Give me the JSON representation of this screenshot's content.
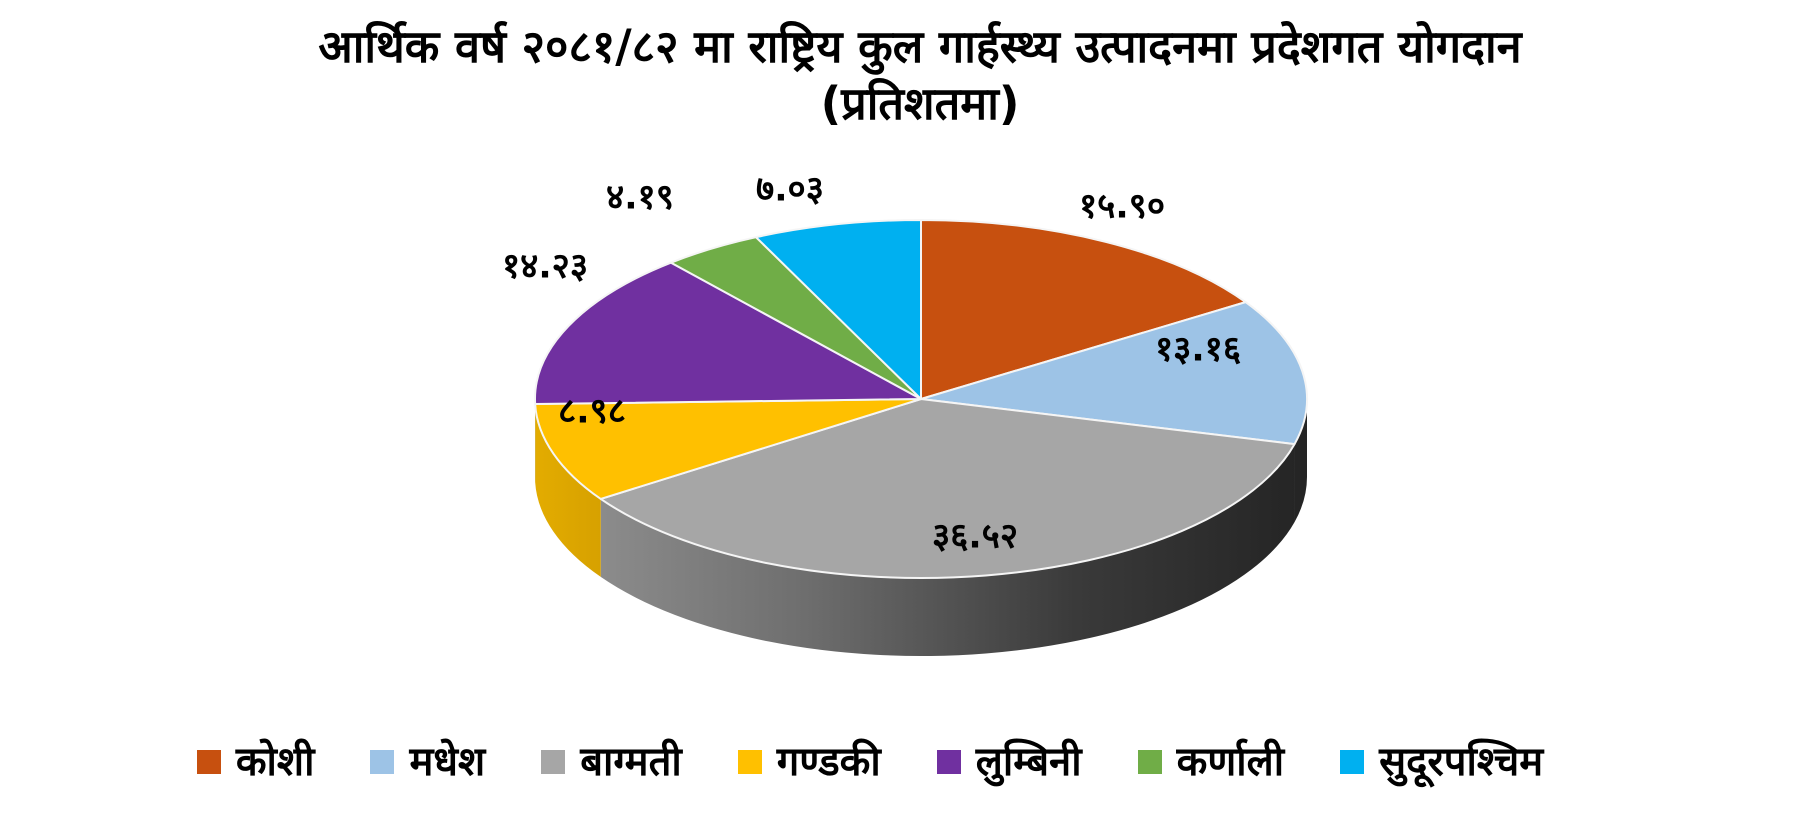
{
  "title": {
    "line1": "आर्थिक वर्ष २०८१/८२ मा राष्ट्रिय कुल गार्हस्थ्य उत्पादनमा प्रदेशगत योगदान",
    "line2": "(प्रतिशतमा)"
  },
  "chart_data": {
    "type": "pie",
    "style": "3d",
    "title": "आर्थिक वर्ष २०८१/८२ मा राष्ट्रिय कुल गार्हस्थ्य उत्पादनमा प्रदेशगत योगदान",
    "subtitle": "(प्रतिशतमा)",
    "unit": "percent",
    "direction": "clockwise",
    "start_angle_deg": 0,
    "legend_position": "bottom",
    "slices": [
      {
        "id": "koshi",
        "label": "कोशी",
        "value": 15.9,
        "value_label": "१५.९०",
        "color": "#C7500F"
      },
      {
        "id": "madhesh",
        "label": "मधेश",
        "value": 13.16,
        "value_label": "१३.१६",
        "color": "#9DC3E6"
      },
      {
        "id": "bagmati",
        "label": "बाग्मती",
        "value": 36.52,
        "value_label": "३६.५२",
        "color": "#A6A6A6"
      },
      {
        "id": "gandaki",
        "label": "गण्डकी",
        "value": 8.98,
        "value_label": "८.९८",
        "color": "#FFC000"
      },
      {
        "id": "lumbini",
        "label": "लुम्बिनी",
        "value": 14.23,
        "value_label": "१४.२३",
        "color": "#7030A0"
      },
      {
        "id": "karnali",
        "label": "कर्णाली",
        "value": 4.19,
        "value_label": "४.१९",
        "color": "#70AD47"
      },
      {
        "id": "sudurpashchim",
        "label": "सुदूरपश्चिम",
        "value": 7.03,
        "value_label": "७.०३",
        "color": "#00B0F0"
      }
    ]
  }
}
